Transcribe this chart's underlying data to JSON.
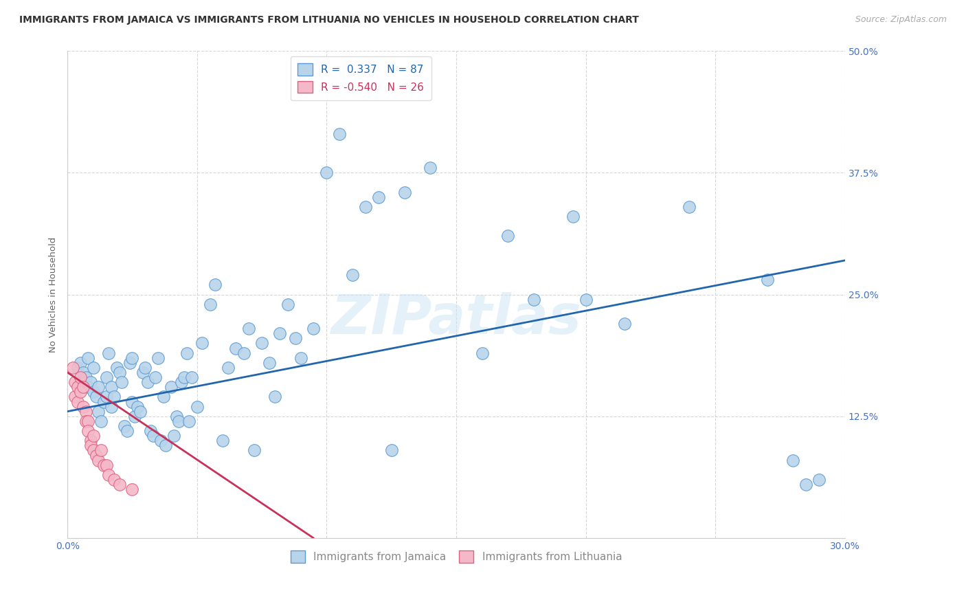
{
  "title": "IMMIGRANTS FROM JAMAICA VS IMMIGRANTS FROM LITHUANIA NO VEHICLES IN HOUSEHOLD CORRELATION CHART",
  "source": "Source: ZipAtlas.com",
  "ylabel": "No Vehicles in Household",
  "xlim": [
    0.0,
    0.3
  ],
  "ylim": [
    0.0,
    0.5
  ],
  "xticks": [
    0.0,
    0.05,
    0.1,
    0.15,
    0.2,
    0.25,
    0.3
  ],
  "xticklabels": [
    "0.0%",
    "",
    "",
    "",
    "",
    "",
    "30.0%"
  ],
  "yticks": [
    0.0,
    0.125,
    0.25,
    0.375,
    0.5
  ],
  "yticklabels": [
    "",
    "12.5%",
    "25.0%",
    "37.5%",
    "50.0%"
  ],
  "bottom_legend": [
    "Immigrants from Jamaica",
    "Immigrants from Lithuania"
  ],
  "jamaica_color": "#b8d4ea",
  "jamaica_edge": "#5b9bd5",
  "lithuania_color": "#f4b8c8",
  "lithuania_edge": "#e06080",
  "jamaica_line_color": "#2166ac",
  "lithuania_line_color": "#c8315a",
  "watermark": "ZIPatlas",
  "jamaica_scatter_x": [
    0.004,
    0.005,
    0.006,
    0.007,
    0.008,
    0.008,
    0.009,
    0.01,
    0.01,
    0.011,
    0.012,
    0.012,
    0.013,
    0.014,
    0.015,
    0.015,
    0.016,
    0.017,
    0.017,
    0.018,
    0.019,
    0.02,
    0.021,
    0.022,
    0.023,
    0.024,
    0.025,
    0.025,
    0.026,
    0.027,
    0.028,
    0.029,
    0.03,
    0.031,
    0.032,
    0.033,
    0.034,
    0.035,
    0.036,
    0.037,
    0.038,
    0.04,
    0.041,
    0.042,
    0.043,
    0.044,
    0.045,
    0.046,
    0.047,
    0.048,
    0.05,
    0.052,
    0.055,
    0.057,
    0.06,
    0.062,
    0.065,
    0.068,
    0.07,
    0.072,
    0.075,
    0.078,
    0.08,
    0.082,
    0.085,
    0.088,
    0.09,
    0.095,
    0.1,
    0.105,
    0.11,
    0.115,
    0.12,
    0.125,
    0.13,
    0.14,
    0.16,
    0.17,
    0.18,
    0.195,
    0.2,
    0.215,
    0.24,
    0.27,
    0.28,
    0.285,
    0.29
  ],
  "jamaica_scatter_y": [
    0.175,
    0.18,
    0.17,
    0.165,
    0.185,
    0.155,
    0.16,
    0.15,
    0.175,
    0.145,
    0.13,
    0.155,
    0.12,
    0.14,
    0.145,
    0.165,
    0.19,
    0.135,
    0.155,
    0.145,
    0.175,
    0.17,
    0.16,
    0.115,
    0.11,
    0.18,
    0.14,
    0.185,
    0.125,
    0.135,
    0.13,
    0.17,
    0.175,
    0.16,
    0.11,
    0.105,
    0.165,
    0.185,
    0.1,
    0.145,
    0.095,
    0.155,
    0.105,
    0.125,
    0.12,
    0.16,
    0.165,
    0.19,
    0.12,
    0.165,
    0.135,
    0.2,
    0.24,
    0.26,
    0.1,
    0.175,
    0.195,
    0.19,
    0.215,
    0.09,
    0.2,
    0.18,
    0.145,
    0.21,
    0.24,
    0.205,
    0.185,
    0.215,
    0.375,
    0.415,
    0.27,
    0.34,
    0.35,
    0.09,
    0.355,
    0.38,
    0.19,
    0.31,
    0.245,
    0.33,
    0.245,
    0.22,
    0.34,
    0.265,
    0.08,
    0.055,
    0.06
  ],
  "lithuania_scatter_x": [
    0.002,
    0.003,
    0.003,
    0.004,
    0.004,
    0.005,
    0.005,
    0.006,
    0.006,
    0.007,
    0.007,
    0.008,
    0.008,
    0.009,
    0.009,
    0.01,
    0.01,
    0.011,
    0.012,
    0.013,
    0.014,
    0.015,
    0.016,
    0.018,
    0.02,
    0.025
  ],
  "lithuania_scatter_y": [
    0.175,
    0.16,
    0.145,
    0.155,
    0.14,
    0.165,
    0.15,
    0.155,
    0.135,
    0.13,
    0.12,
    0.12,
    0.11,
    0.1,
    0.095,
    0.105,
    0.09,
    0.085,
    0.08,
    0.09,
    0.075,
    0.075,
    0.065,
    0.06,
    0.055,
    0.05
  ],
  "jamaica_line_x": [
    0.0,
    0.3
  ],
  "jamaica_line_y": [
    0.13,
    0.285
  ],
  "lithuania_line_x": [
    0.0,
    0.095
  ],
  "lithuania_line_y": [
    0.17,
    0.0
  ],
  "title_fontsize": 10,
  "axis_label_fontsize": 9.5,
  "tick_fontsize": 10,
  "legend_fontsize": 11,
  "source_fontsize": 9
}
